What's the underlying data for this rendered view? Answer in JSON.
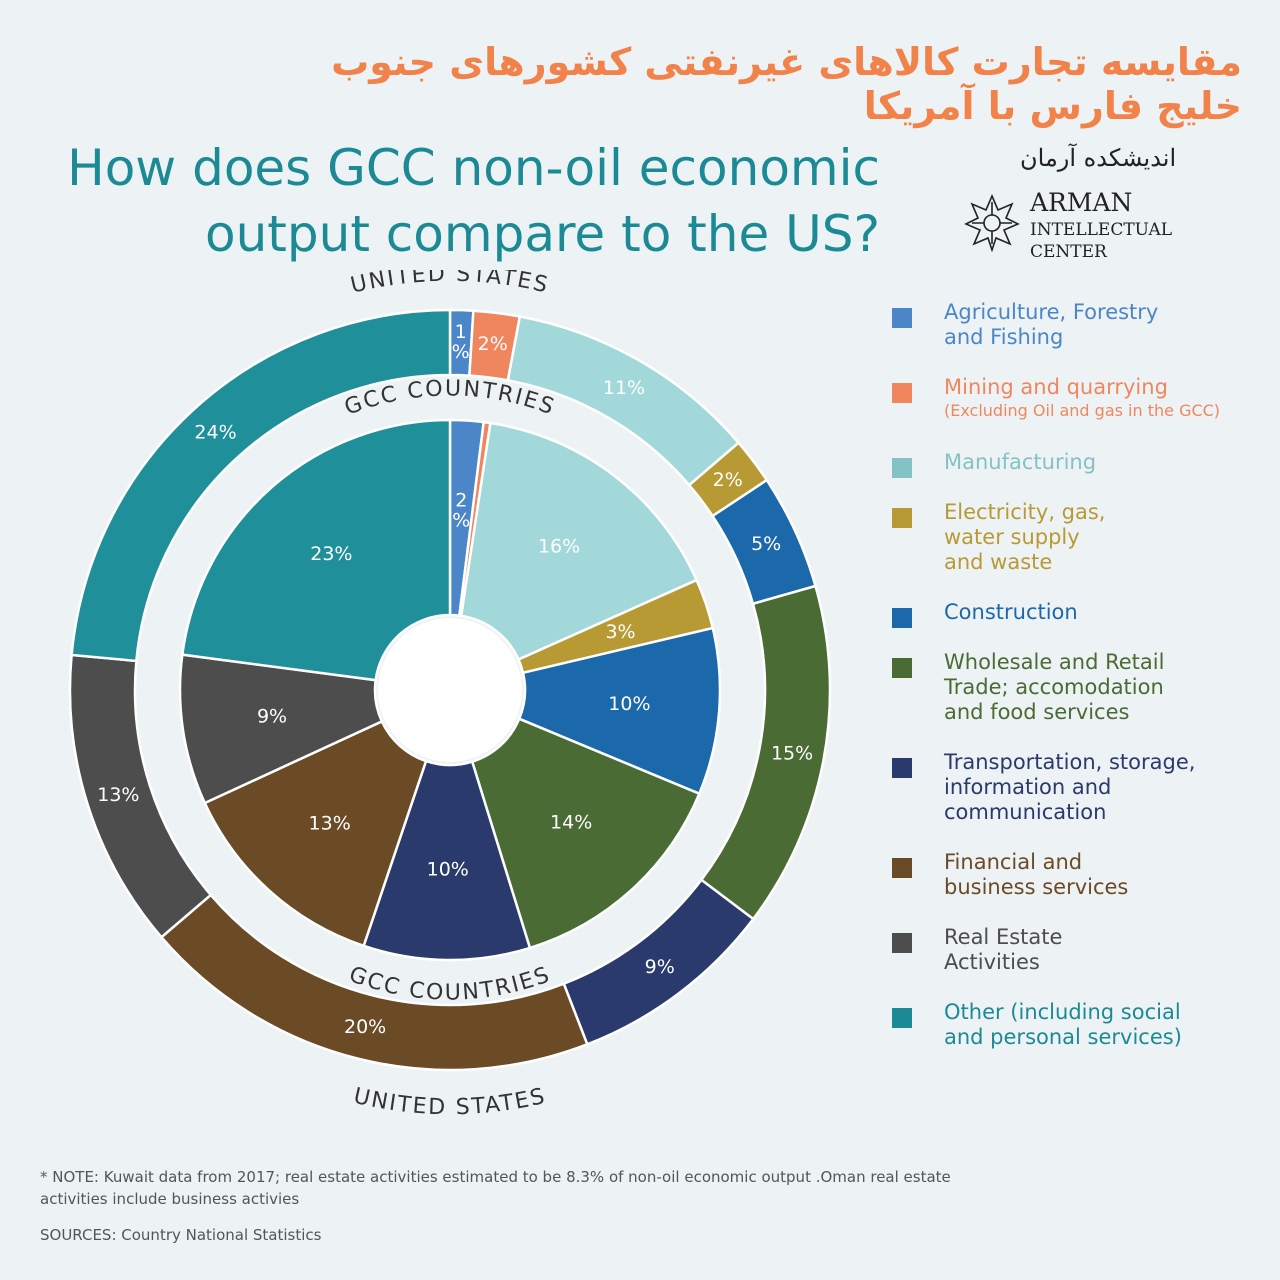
{
  "persian_title": "مقایسه تجارت کالاهای غیرنفتی کشورهای جنوب خلیج فارس با آمریکا",
  "title_line1": "How does GCC non-oil economic",
  "title_line2": "output compare to the US?",
  "logo": {
    "persian": "اندیشکده آرمان",
    "line1": "ARMAN",
    "line2": "INTELLECTUAL",
    "line3": "CENTER"
  },
  "ring_labels": {
    "outer_top": "UNITED STATES",
    "outer_bottom": "UNITED STATES",
    "inner_top": "GCC COUNTRIES",
    "inner_bottom": "GCC COUNTRIES"
  },
  "legend": [
    {
      "label": "Agriculture, Forestry\nand Fishing",
      "sub": "",
      "color": "#4a86c8"
    },
    {
      "label": "Mining and quarrying",
      "sub": "(Excluding Oil and gas in the GCC)",
      "color": "#f0865e"
    },
    {
      "label": "Manufacturing",
      "sub": "",
      "color": "#85c2c4"
    },
    {
      "label": "Electricity, gas,\nwater supply\nand waste",
      "sub": "",
      "color": "#b89a35"
    },
    {
      "label": "Construction",
      "sub": "",
      "color": "#1b69ab"
    },
    {
      "label": "Wholesale and Retail\nTrade; accomodation\nand food services",
      "sub": "",
      "color": "#4a6b33"
    },
    {
      "label": "Transportation, storage,\ninformation and\ncommunication",
      "sub": "",
      "color": "#2b3a6c"
    },
    {
      "label": "Financial and\nbusiness services",
      "sub": "",
      "color": "#6b4b25"
    },
    {
      "label": "Real Estate\nActivities",
      "sub": "",
      "color": "#4d4d4d"
    },
    {
      "label": "Other (including social\nand personal services)",
      "sub": "",
      "color": "#1b8a95"
    }
  ],
  "legend_text_colors": [
    "#4a86c8",
    "#f0865e",
    "#85c2c4",
    "#b89a35",
    "#1b69ab",
    "#4a6b33",
    "#2b3a6c",
    "#6b4b25",
    "#4d4d4d",
    "#1b8a95"
  ],
  "chart_data": {
    "type": "donut",
    "categories": [
      "Agriculture, Forestry and Fishing",
      "Mining and quarrying",
      "Manufacturing",
      "Electricity, gas, water supply and waste",
      "Construction",
      "Wholesale and Retail Trade; accomodation and food services",
      "Transportation, storage, information and communication",
      "Financial and business services",
      "Real Estate Activities",
      "Other (including social and personal services)"
    ],
    "colors": [
      "#4a86c8",
      "#f0865e",
      "#a2d8d9",
      "#b89a35",
      "#1b69ab",
      "#4a6b33",
      "#2b3a6c",
      "#6b4b25",
      "#4d4d4d",
      "#1f909a"
    ],
    "series": [
      {
        "name": "GCC COUNTRIES",
        "ring": "inner",
        "values": [
          2,
          0.4,
          16,
          3,
          10,
          14,
          10,
          13,
          9,
          23
        ],
        "labels": [
          "2\n%",
          "",
          "16%",
          "3%",
          "10%",
          "14%",
          "10%",
          "13%",
          "9%",
          "23%"
        ]
      },
      {
        "name": "UNITED STATES",
        "ring": "outer",
        "values": [
          1,
          2,
          11,
          2,
          5,
          15,
          9,
          20,
          13,
          24
        ],
        "labels": [
          "1\n%",
          "2%",
          "11%",
          "2%",
          "5%",
          "15%",
          "9%",
          "20%",
          "13%",
          "24%"
        ]
      }
    ]
  },
  "note": "* NOTE: Kuwait data from 2017; real estate activities estimated to be 8.3% of non-oil economic output .Oman real estate activities include business activies",
  "sources": "SOURCES: Country National Statistics"
}
